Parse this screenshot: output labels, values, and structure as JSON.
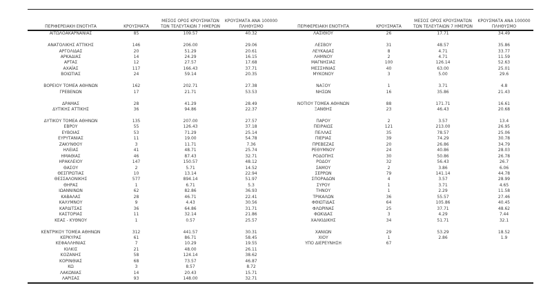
{
  "table": {
    "headers": {
      "region": "ΠΕΡΙΦΕΡΕΙΑΚΗ ΕΝΟΤΗΤΑ",
      "cases": "ΚΡΟΥΣΜΑΤΑ",
      "avg7_line1": "ΜΕΣΟΣ ΟΡΟΣ ΚΡΟΥΣΜΑΤΩΝ",
      "avg7_line2": "ΤΩΝ ΤΕΛΕΥΤΑΙΩΝ 7 ΗΜΕΡΩΝ",
      "per100k_line1": "ΚΡΟΥΣΜΑΤΑ ΑΝΑ 100000",
      "per100k_line2": "ΠΛΗΘΥΣΜΟ"
    },
    "rows": [
      {
        "left": [
          "ΑΙΤΩΛΟΑΚΑΡΝΑΝΙΑΣ",
          "85",
          "109.57",
          "40.32"
        ],
        "right": [
          "ΛΑΣΙΘΙΟΥ",
          "26",
          "17.71",
          "34.49"
        ]
      },
      {
        "gap": true
      },
      {
        "left": [
          "ΑΝΑΤΟΛΙΚΗΣ ΑΤΤΙΚΗΣ",
          "146",
          "206.00",
          "29.06"
        ],
        "right": [
          "ΛΕΣΒΟΥ",
          "31",
          "48.57",
          "35.86"
        ]
      },
      {
        "left": [
          "ΑΡΓΟΛΙΔΑΣ",
          "20",
          "51.29",
          "20.61"
        ],
        "right": [
          "ΛΕΥΚΑΔΑΣ",
          "8",
          "4.71",
          "33.77"
        ]
      },
      {
        "left": [
          "ΑΡΚΑΔΙΑΣ",
          "14",
          "24.29",
          "16.15"
        ],
        "right": [
          "ΛΗΜΝΟΥ",
          "2",
          "4.71",
          "11.59"
        ]
      },
      {
        "left": [
          "ΑΡΤΑΣ",
          "12",
          "27.57",
          "17.68"
        ],
        "right": [
          "ΜΑΓΝΗΣΙΑΣ",
          "100",
          "126.14",
          "52.63"
        ]
      },
      {
        "left": [
          "ΑΧΑΪΑΣ",
          "117",
          "166.43",
          "37.71"
        ],
        "right": [
          "ΜΕΣΣΗΝΙΑΣ",
          "40",
          "63.00",
          "25.01"
        ]
      },
      {
        "left": [
          "ΒΟΙΩΤΙΑΣ",
          "24",
          "59.14",
          "20.35"
        ],
        "right": [
          "ΜΥΚΟΝΟΥ",
          "3",
          "5.00",
          "29.6"
        ]
      },
      {
        "gap": true
      },
      {
        "left": [
          "ΒΟΡΕΙΟΥ ΤΟΜΕΑ ΑΘΗΝΩΝ",
          "162",
          "202.71",
          "27.38"
        ],
        "right": [
          "ΝΑΞΟΥ",
          "1",
          "3.71",
          "4.8"
        ]
      },
      {
        "left": [
          "ΓΡΕΒΕΝΩΝ",
          "17",
          "21.71",
          "53.53"
        ],
        "right": [
          "ΝΗΣΩΝ",
          "16",
          "35.86",
          "21.43"
        ]
      },
      {
        "gap": true
      },
      {
        "left": [
          "ΔΡΑΜΑΣ",
          "28",
          "41.29",
          "28.49"
        ],
        "right": [
          "ΝΟΤΙΟΥ ΤΟΜΕΑ ΑΘΗΝΩΝ",
          "88",
          "171.71",
          "16.61"
        ]
      },
      {
        "left": [
          "ΔΥΤΙΚΗΣ ΑΤΤΙΚΗΣ",
          "36",
          "94.86",
          "22.37"
        ],
        "right": [
          "ΞΑΝΘΗΣ",
          "23",
          "46.43",
          "20.68"
        ]
      },
      {
        "gap": true
      },
      {
        "left": [
          "ΔΥΤΙΚΟΥ ΤΟΜΕΑ ΑΘΗΝΩΝ",
          "135",
          "207.00",
          "27.57"
        ],
        "right": [
          "ΠΑΡΟΥ",
          "2",
          "3.57",
          "13.4"
        ]
      },
      {
        "left": [
          "ΕΒΡΟΥ",
          "55",
          "126.43",
          "37.18"
        ],
        "right": [
          "ΠΕΙΡΑΙΩΣ",
          "121",
          "213.00",
          "26.95"
        ]
      },
      {
        "left": [
          "ΕΥΒΟΙΑΣ",
          "53",
          "71.29",
          "25.14"
        ],
        "right": [
          "ΠΕΛΛΑΣ",
          "35",
          "78.57",
          "25.06"
        ]
      },
      {
        "left": [
          "ΕΥΡΥΤΑΝΙΑΣ",
          "11",
          "19.00",
          "54.78"
        ],
        "right": [
          "ΠΙΕΡΙΑΣ",
          "39",
          "74.29",
          "30.78"
        ]
      },
      {
        "left": [
          "ΖΑΚΥΝΘΟΥ",
          "3",
          "11.71",
          "7.36"
        ],
        "right": [
          "ΠΡΕΒΕΖΑΣ",
          "20",
          "26.86",
          "34.79"
        ]
      },
      {
        "left": [
          "ΗΛΕΙΑΣ",
          "41",
          "48.71",
          "25.74"
        ],
        "right": [
          "ΡΕΘΥΜΝΟΥ",
          "24",
          "40.86",
          "28.03"
        ]
      },
      {
        "left": [
          "ΗΜΑΘΙΑΣ",
          "46",
          "87.43",
          "32.71"
        ],
        "right": [
          "ΡΟΔΟΠΗΣ",
          "30",
          "50.86",
          "26.78"
        ]
      },
      {
        "left": [
          "ΗΡΑΚΛΕΙΟΥ",
          "147",
          "150.57",
          "48.12"
        ],
        "right": [
          "ΡΟΔΟΥ",
          "32",
          "56.43",
          "26.7"
        ]
      },
      {
        "left": [
          "ΘΑΣΟΥ",
          "2",
          "5.71",
          "14.52"
        ],
        "right": [
          "ΣΑΜΟΥ",
          "2",
          "3.86",
          "6.06"
        ]
      },
      {
        "left": [
          "ΘΕΣΠΡΩΤΙΑΣ",
          "10",
          "13.14",
          "22.94"
        ],
        "right": [
          "ΣΕΡΡΩΝ",
          "79",
          "141.14",
          "44.78"
        ]
      },
      {
        "left": [
          "ΘΕΣΣΑΛΟΝΙΚΗΣ",
          "577",
          "894.14",
          "51.97"
        ],
        "right": [
          "ΣΠΟΡΑΔΩΝ",
          "4",
          "3.57",
          "28.99"
        ]
      },
      {
        "left": [
          "ΘΗΡΑΣ",
          "1",
          "6.71",
          "5.3"
        ],
        "right": [
          "ΣΥΡΟΥ",
          "1",
          "3.71",
          "4.65"
        ]
      },
      {
        "left": [
          "ΙΩΑΝΝΙΝΩΝ",
          "62",
          "82.86",
          "36.93"
        ],
        "right": [
          "ΤΗΝΟΥ",
          "1",
          "2.29",
          "11.58"
        ]
      },
      {
        "left": [
          "ΚΑΒΑΛΑΣ",
          "28",
          "46.71",
          "22.41"
        ],
        "right": [
          "ΤΡΙΚΑΛΩΝ",
          "36",
          "55.57",
          "27.46"
        ]
      },
      {
        "left": [
          "ΚΑΛΥΜΝΟΥ",
          "9",
          "4.43",
          "30.56"
        ],
        "right": [
          "ΦΘΙΩΤΙΔΑΣ",
          "64",
          "105.86",
          "40.45"
        ]
      },
      {
        "left": [
          "ΚΑΡΔΙΤΣΑΣ",
          "36",
          "64.86",
          "31.71"
        ],
        "right": [
          "ΦΛΩΡΙΝΑΣ",
          "25",
          "37.71",
          "48.62"
        ]
      },
      {
        "left": [
          "ΚΑΣΤΟΡΙΑΣ",
          "11",
          "32.14",
          "21.86"
        ],
        "right": [
          "ΦΩΚΙΔΑΣ",
          "3",
          "4.29",
          "7.44"
        ]
      },
      {
        "left": [
          "ΚΕΑΣ - ΚΥΘΝΟΥ",
          "1",
          "0.57",
          "25.57"
        ],
        "right": [
          "ΧΑΛΚΙΔΙΚΗΣ",
          "34",
          "51.71",
          "32.1"
        ]
      },
      {
        "gap": true
      },
      {
        "left": [
          "ΚΕΝΤΡΙΚΟΥ ΤΟΜΕΑ ΑΘΗΝΩΝ",
          "312",
          "441.57",
          "30.31"
        ],
        "right": [
          "ΧΑΝΙΩΝ",
          "29",
          "53.29",
          "18.52"
        ]
      },
      {
        "left": [
          "ΚΕΡΚΥΡΑΣ",
          "61",
          "86.71",
          "58.45"
        ],
        "right": [
          "ΧΙΟΥ",
          "1",
          "2.86",
          "1.9"
        ]
      },
      {
        "left": [
          "ΚΕΦΑΛΛΗΝΙΑΣ",
          "7",
          "10.29",
          "19.55"
        ],
        "right": [
          "ΥΠΟ ΔΙΕΡΕΥΝΗΣΗ",
          "67",
          "",
          ""
        ]
      },
      {
        "left": [
          "ΚΙΛΚΙΣ",
          "21",
          "48.00",
          "26.11"
        ],
        "right": null
      },
      {
        "left": [
          "ΚΟΖΑΝΗΣ",
          "58",
          "124.14",
          "38.62"
        ],
        "right": null
      },
      {
        "left": [
          "ΚΟΡΙΝΘΙΑΣ",
          "68",
          "73.57",
          "46.87"
        ],
        "right": null
      },
      {
        "left": [
          "ΚΩ",
          "3",
          "8.57",
          "8.72"
        ],
        "right": null
      },
      {
        "left": [
          "ΛΑΚΩΝΙΑΣ",
          "14",
          "20.43",
          "15.71"
        ],
        "right": null
      },
      {
        "left": [
          "ΛΑΡΙΣΑΣ",
          "93",
          "148.00",
          "32.71"
        ],
        "right": null
      }
    ]
  }
}
